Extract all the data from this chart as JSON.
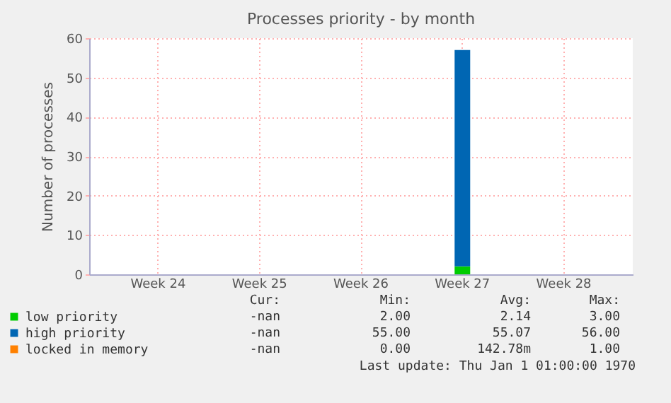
{
  "chart_data": {
    "type": "bar",
    "stacked": true,
    "title": "Processes priority - by month",
    "ylabel": "Number of processes",
    "categories": [
      "Week 24",
      "Week 25",
      "Week 26",
      "Week 27",
      "Week 28"
    ],
    "series": [
      {
        "name": "low priority",
        "color": "#00cc00",
        "values": [
          null,
          null,
          null,
          2,
          null
        ]
      },
      {
        "name": "high priority",
        "color": "#0066b3",
        "values": [
          null,
          null,
          null,
          55,
          null
        ]
      },
      {
        "name": "locked in memory",
        "color": "#ff8000",
        "values": [
          null,
          null,
          null,
          0,
          null
        ]
      }
    ],
    "ylim": [
      0,
      60
    ],
    "yticks": [
      0,
      10,
      20,
      30,
      40,
      50,
      60
    ],
    "grid": true,
    "legend": "bottom",
    "annotations": [
      "Cur:",
      "Min:",
      "Avg:",
      "Max:",
      "-nan",
      "2.00",
      "2.14",
      "3.00",
      "-nan",
      "55.00",
      "55.07",
      "56.00",
      "-nan",
      "0.00",
      "142.78m",
      "1.00",
      "Last update: Thu Jan  1 01:00:00 1970"
    ]
  }
}
